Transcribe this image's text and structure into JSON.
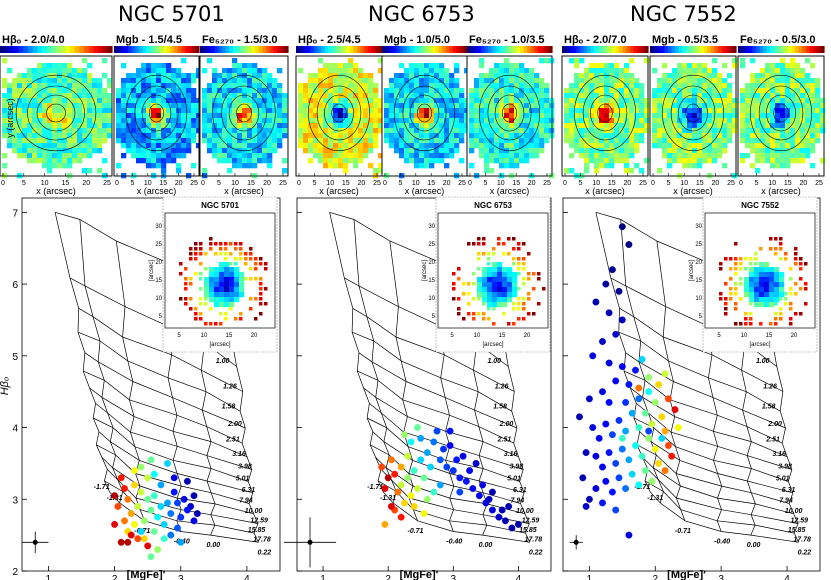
{
  "figure": {
    "galaxies": [
      {
        "name": "NGC 5701",
        "index_labels": [
          "Hβₒ - 2.0/4.0",
          "Mgb - 1.5/4.5",
          "Fe₅₂₇₀ - 1.5/3.0"
        ]
      },
      {
        "name": "NGC 6753",
        "index_labels": [
          "Hβₒ - 2.5/4.5",
          "Mgb - 1.0/5.0",
          "Fe₅₂₇₀ - 1.0/3.5"
        ]
      },
      {
        "name": "NGC 7552",
        "index_labels": [
          "Hβₒ - 2.0/7.0",
          "Mgb - 0.5/3.5",
          "Fe₅₂₇₀ - 0.5/3.0"
        ]
      }
    ],
    "map_axes": {
      "xlabel": "x (arcsec)",
      "ylabel": "y (arcsec)",
      "xticks": [
        "0",
        "5",
        "10",
        "15",
        "20",
        "25"
      ],
      "yticks": [
        "0",
        "5",
        "10",
        "15",
        "20",
        "25",
        "30"
      ]
    },
    "inset_axes": {
      "xlabel": "[arcsec]",
      "ylabel": "[arcsec]",
      "xticks": [
        "5",
        "10",
        "15",
        "20"
      ],
      "yticks": [
        "5",
        "10",
        "15",
        "20",
        "25",
        "30"
      ]
    },
    "grid_age_labels": [
      "0.79",
      "1.00",
      "1.26",
      "1.58",
      "2.00",
      "2.51",
      "3.16",
      "3.98",
      "5.01",
      "6.31",
      "7.94",
      "10.00",
      "12.59",
      "15.85",
      "17.78"
    ],
    "grid_metal_labels": [
      "-1.71",
      "-1.31",
      "-0.71",
      "-0.40",
      "0.00",
      "0.22"
    ]
  },
  "chart_data": [
    {
      "type": "scatter",
      "title": "NGC 5701",
      "xlabel": "[MgFe]′",
      "ylabel": "Hβₒ",
      "xlim": [
        0.6,
        4.5
      ],
      "ylim": [
        2.0,
        7.2
      ],
      "xticks": [
        1,
        2,
        3,
        4
      ],
      "yticks": [
        2,
        3,
        4,
        5,
        6,
        7
      ],
      "error_bar": {
        "x": 0.8,
        "y": 2.4,
        "dx": 0.2,
        "dy": 0.15
      },
      "series": [
        {
          "name": "bins",
          "points": [
            [
              3.2,
              2.7,
              0.1
            ],
            [
              3.25,
              2.8,
              0.05
            ],
            [
              3.15,
              2.9,
              0.08
            ],
            [
              3.1,
              2.85,
              0.15
            ],
            [
              3.05,
              3.0,
              0.1
            ],
            [
              3.2,
              3.05,
              0.05
            ],
            [
              2.95,
              2.95,
              0.2
            ],
            [
              2.9,
              3.1,
              0.15
            ],
            [
              3.0,
              2.75,
              0.18
            ],
            [
              2.85,
              2.8,
              0.25
            ],
            [
              2.8,
              2.95,
              0.3
            ],
            [
              2.95,
              2.6,
              0.22
            ],
            [
              2.7,
              2.9,
              0.35
            ],
            [
              2.65,
              2.75,
              0.4
            ],
            [
              2.75,
              2.65,
              0.35
            ],
            [
              2.6,
              3.05,
              0.45
            ],
            [
              2.55,
              2.85,
              0.5
            ],
            [
              2.5,
              3.0,
              0.5
            ],
            [
              2.45,
              2.7,
              0.55
            ],
            [
              2.4,
              3.1,
              0.6
            ],
            [
              2.35,
              2.9,
              0.6
            ],
            [
              2.6,
              2.55,
              0.5
            ],
            [
              2.3,
              2.65,
              0.65
            ],
            [
              2.3,
              3.2,
              0.7
            ],
            [
              2.25,
              2.8,
              0.75
            ],
            [
              2.2,
              2.55,
              0.7
            ],
            [
              2.2,
              3.0,
              0.8
            ],
            [
              2.15,
              2.7,
              0.8
            ],
            [
              2.45,
              2.45,
              0.7
            ],
            [
              2.35,
              2.45,
              0.85
            ],
            [
              2.1,
              3.3,
              0.9
            ],
            [
              2.05,
              2.9,
              0.85
            ],
            [
              2.0,
              2.65,
              0.95
            ],
            [
              2.5,
              3.3,
              0.6
            ],
            [
              2.4,
              3.45,
              0.55
            ],
            [
              2.6,
              3.35,
              0.4
            ],
            [
              2.7,
              3.2,
              0.3
            ],
            [
              2.9,
              3.3,
              0.1
            ],
            [
              3.1,
              3.25,
              0.05
            ],
            [
              2.8,
              3.5,
              0.35
            ],
            [
              2.55,
              3.55,
              0.5
            ],
            [
              2.3,
              3.4,
              0.65
            ],
            [
              2.15,
              3.15,
              0.9
            ],
            [
              2.0,
              3.05,
              1.0
            ],
            [
              2.2,
              2.4,
              1.0
            ],
            [
              2.5,
              2.35,
              0.95
            ],
            [
              2.65,
              2.3,
              0.55
            ],
            [
              2.85,
              2.5,
              0.25
            ],
            [
              3.0,
              2.4,
              0.3
            ],
            [
              2.75,
              2.45,
              0.45
            ],
            [
              2.25,
              2.5,
              0.95
            ],
            [
              2.1,
              2.4,
              1.0
            ],
            [
              2.4,
              2.55,
              0.35
            ],
            [
              2.55,
              2.2,
              0.5
            ]
          ]
        }
      ]
    },
    {
      "type": "scatter",
      "title": "NGC 6753",
      "xlabel": "[MgFe]′",
      "ylabel": "Hβₒ",
      "xlim": [
        0.6,
        4.5
      ],
      "ylim": [
        2.0,
        7.2
      ],
      "xticks": [
        1,
        2,
        3,
        4
      ],
      "yticks": [
        2,
        3,
        4,
        5,
        6,
        7
      ],
      "error_bar": {
        "x": 0.8,
        "y": 2.4,
        "dx": 0.4,
        "dy": 0.35
      },
      "series": [
        {
          "name": "bins",
          "points": [
            [
              3.9,
              2.6,
              0.05
            ],
            [
              3.8,
              2.7,
              0.05
            ],
            [
              3.7,
              2.75,
              0.08
            ],
            [
              3.6,
              2.85,
              0.1
            ],
            [
              3.5,
              2.95,
              0.1
            ],
            [
              3.4,
              3.05,
              0.12
            ],
            [
              3.3,
              3.15,
              0.12
            ],
            [
              3.2,
              3.25,
              0.15
            ],
            [
              3.1,
              3.3,
              0.15
            ],
            [
              3.0,
              3.4,
              0.18
            ],
            [
              2.9,
              3.45,
              0.2
            ],
            [
              2.8,
              3.55,
              0.22
            ],
            [
              3.75,
              2.85,
              0.05
            ],
            [
              3.55,
              3.0,
              0.08
            ],
            [
              3.45,
              3.2,
              0.1
            ],
            [
              3.25,
              3.4,
              0.12
            ],
            [
              3.05,
              3.55,
              0.15
            ],
            [
              2.85,
              3.7,
              0.18
            ],
            [
              2.7,
              3.8,
              0.25
            ],
            [
              2.6,
              3.65,
              0.3
            ],
            [
              2.5,
              3.55,
              0.35
            ],
            [
              2.4,
              3.4,
              0.45
            ],
            [
              2.3,
              3.3,
              0.55
            ],
            [
              2.2,
              3.2,
              0.6
            ],
            [
              2.55,
              3.3,
              0.5
            ],
            [
              2.45,
              3.15,
              0.6
            ],
            [
              2.35,
              3.05,
              0.65
            ],
            [
              2.25,
              2.95,
              0.7
            ],
            [
              2.15,
              3.1,
              0.8
            ],
            [
              2.1,
              2.85,
              0.85
            ],
            [
              2.6,
              3.0,
              0.55
            ],
            [
              2.7,
              3.1,
              0.45
            ],
            [
              2.8,
              3.2,
              0.3
            ],
            [
              2.65,
              3.45,
              0.35
            ],
            [
              2.3,
              3.6,
              0.6
            ],
            [
              2.2,
              3.45,
              0.75
            ],
            [
              2.1,
              3.35,
              0.9
            ],
            [
              2.0,
              3.3,
              1.0
            ],
            [
              1.95,
              3.15,
              0.95
            ],
            [
              2.05,
              3.55,
              0.8
            ],
            [
              2.35,
              3.8,
              0.4
            ],
            [
              2.5,
              3.85,
              0.3
            ],
            [
              2.75,
              3.95,
              0.2
            ],
            [
              2.95,
              3.75,
              0.12
            ],
            [
              3.15,
              3.6,
              0.1
            ],
            [
              3.35,
              3.5,
              0.08
            ],
            [
              2.4,
              2.9,
              0.7
            ],
            [
              2.55,
              2.8,
              0.65
            ],
            [
              2.2,
              2.75,
              0.9
            ],
            [
              2.45,
              4.0,
              0.5
            ],
            [
              2.25,
              3.9,
              0.55
            ],
            [
              3.6,
              3.1,
              0.05
            ],
            [
              3.85,
              2.9,
              0.05
            ],
            [
              4.0,
              2.65,
              0.05
            ],
            [
              1.9,
              3.45,
              0.85
            ],
            [
              2.95,
              3.95,
              0.15
            ],
            [
              3.1,
              3.1,
              0.2
            ],
            [
              2.05,
              2.9,
              0.95
            ],
            [
              1.95,
              2.65,
              0.75
            ]
          ]
        }
      ]
    },
    {
      "type": "scatter",
      "title": "NGC 7552",
      "xlabel": "[MgFe]′",
      "ylabel": "Hβₒ",
      "xlim": [
        0.6,
        4.5
      ],
      "ylim": [
        2.0,
        7.2
      ],
      "xticks": [
        1,
        2,
        3,
        4
      ],
      "yticks": [
        2,
        3,
        4,
        5,
        6,
        7
      ],
      "error_bar": {
        "x": 0.8,
        "y": 2.4,
        "dx": 0.1,
        "dy": 0.1
      },
      "series": [
        {
          "name": "bins",
          "points": [
            [
              1.5,
              6.8,
              0.0
            ],
            [
              1.6,
              6.55,
              0.0
            ],
            [
              1.35,
              6.2,
              0.02
            ],
            [
              1.25,
              6.0,
              0.03
            ],
            [
              1.45,
              5.9,
              0.02
            ],
            [
              1.1,
              5.75,
              0.05
            ],
            [
              1.3,
              5.6,
              0.05
            ],
            [
              1.5,
              5.5,
              0.06
            ],
            [
              1.4,
              5.3,
              0.08
            ],
            [
              1.2,
              5.2,
              0.07
            ],
            [
              1.05,
              5.0,
              0.1
            ],
            [
              1.3,
              4.9,
              0.1
            ],
            [
              1.5,
              4.85,
              0.12
            ],
            [
              1.7,
              4.8,
              0.15
            ],
            [
              1.6,
              4.6,
              0.15
            ],
            [
              1.4,
              4.65,
              0.12
            ],
            [
              1.2,
              4.5,
              0.1
            ],
            [
              1.0,
              4.4,
              0.08
            ],
            [
              1.3,
              4.35,
              0.12
            ],
            [
              1.55,
              4.35,
              0.18
            ],
            [
              1.75,
              4.4,
              0.25
            ],
            [
              1.9,
              4.5,
              0.4
            ],
            [
              2.0,
              4.35,
              0.55
            ],
            [
              1.85,
              4.2,
              0.5
            ],
            [
              1.65,
              4.2,
              0.3
            ],
            [
              1.45,
              4.1,
              0.18
            ],
            [
              1.25,
              4.05,
              0.12
            ],
            [
              1.05,
              4.0,
              0.1
            ],
            [
              1.15,
              3.85,
              0.12
            ],
            [
              1.35,
              3.9,
              0.2
            ],
            [
              1.55,
              3.95,
              0.3
            ],
            [
              1.75,
              4.0,
              0.45
            ],
            [
              1.95,
              4.05,
              0.6
            ],
            [
              2.1,
              4.15,
              0.7
            ],
            [
              2.15,
              3.95,
              0.75
            ],
            [
              1.9,
              3.85,
              0.55
            ],
            [
              1.7,
              3.75,
              0.4
            ],
            [
              1.5,
              3.7,
              0.25
            ],
            [
              1.3,
              3.65,
              0.15
            ],
            [
              1.1,
              3.6,
              0.1
            ],
            [
              1.2,
              3.45,
              0.12
            ],
            [
              1.4,
              3.5,
              0.2
            ],
            [
              1.6,
              3.55,
              0.3
            ],
            [
              1.8,
              3.6,
              0.45
            ],
            [
              2.0,
              3.7,
              0.65
            ],
            [
              2.2,
              3.75,
              0.85
            ],
            [
              2.05,
              3.5,
              0.7
            ],
            [
              1.85,
              3.4,
              0.5
            ],
            [
              1.65,
              3.35,
              0.35
            ],
            [
              1.45,
              3.3,
              0.2
            ],
            [
              1.25,
              3.25,
              0.12
            ],
            [
              1.1,
              3.15,
              0.1
            ],
            [
              1.35,
              3.1,
              0.15
            ],
            [
              1.55,
              3.15,
              0.25
            ],
            [
              1.75,
              3.2,
              0.4
            ],
            [
              1.95,
              3.25,
              0.55
            ],
            [
              2.15,
              3.4,
              0.8
            ],
            [
              2.25,
              3.6,
              0.9
            ],
            [
              2.3,
              4.25,
              0.95
            ],
            [
              2.2,
              4.4,
              0.85
            ],
            [
              2.05,
              4.6,
              0.7
            ],
            [
              1.9,
              4.7,
              0.55
            ],
            [
              2.15,
              4.75,
              0.6
            ],
            [
              1.8,
              4.95,
              0.35
            ],
            [
              1.0,
              3.0,
              0.05
            ],
            [
              0.95,
              2.9,
              0.08
            ],
            [
              1.2,
              2.95,
              0.15
            ],
            [
              1.4,
              2.85,
              0.2
            ],
            [
              0.9,
              3.3,
              0.05
            ],
            [
              0.95,
              3.65,
              0.06
            ],
            [
              0.85,
              4.15,
              0.05
            ],
            [
              1.6,
              2.5,
              0.1
            ],
            [
              1.5,
              3.85,
              0.45
            ],
            [
              1.9,
              3.95,
              0.2
            ],
            [
              2.1,
              3.85,
              0.35
            ],
            [
              1.75,
              4.55,
              0.8
            ],
            [
              2.35,
              4.0,
              0.65
            ]
          ]
        }
      ]
    }
  ]
}
